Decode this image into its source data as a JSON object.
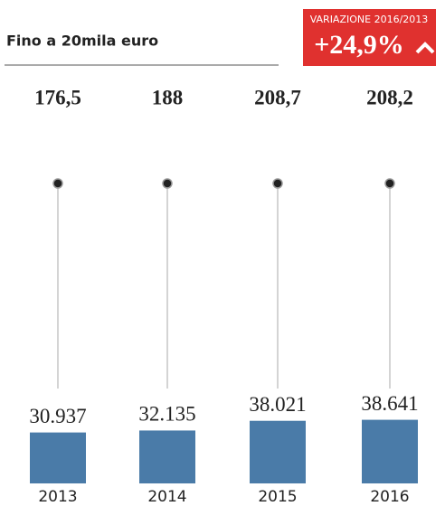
{
  "chart_data": {
    "type": "bar",
    "title": "Fino a 20mila euro",
    "change": {
      "label": "VARIAZIONE 2016/2013",
      "value": 24.9,
      "value_label": "+24,9%"
    },
    "categories": [
      "2013",
      "2014",
      "2015",
      "2016"
    ],
    "values": [
      30937,
      32135,
      38021,
      38641
    ],
    "value_labels": [
      "30.937",
      "32.135",
      "38.021",
      "38.641"
    ],
    "secondary_values": [
      176.5,
      188,
      208.7,
      208.2
    ],
    "secondary_value_labels": [
      "176,5",
      "188",
      "208,7",
      "208,2"
    ],
    "color": "#4a7ba8",
    "ylim": [
      0,
      45000
    ]
  }
}
